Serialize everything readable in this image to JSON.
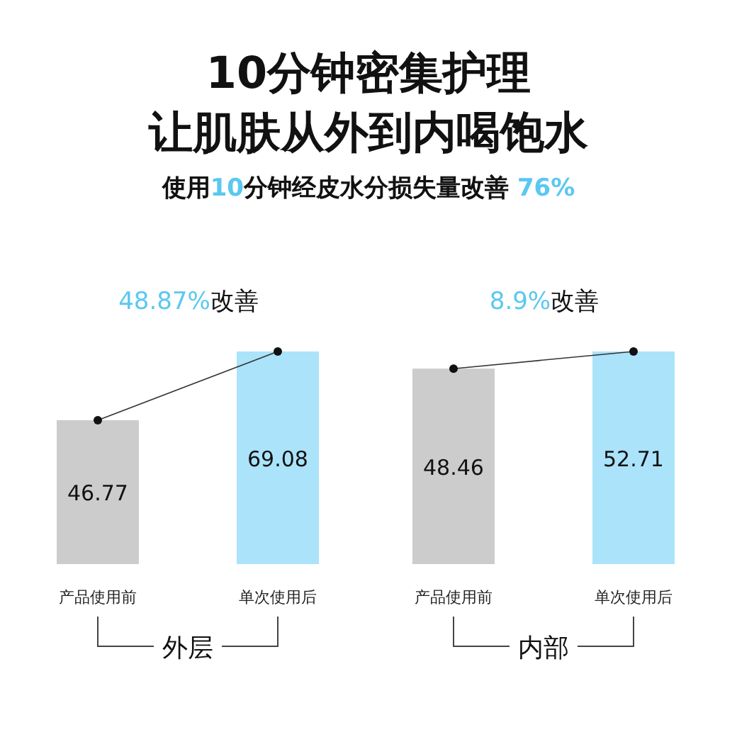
{
  "chart_data": [
    {
      "type": "other",
      "title": "10分钟密集护理让肌肤从外到内喝饱水",
      "subtitle": "使用10分钟经皮水分损失量改善 76%"
    },
    {
      "type": "bar",
      "categories": [
        "产品使用前",
        "单次使用后"
      ],
      "xlabel": "外层",
      "annotations": [
        "48.87%改善"
      ],
      "series": [
        {
          "type": "bar",
          "values": [
            46.77,
            69.08
          ],
          "value_labels": [
            "46.77",
            "69.08"
          ],
          "colors": [
            "#cccccc",
            "#aae3fa"
          ]
        },
        {
          "type": "line",
          "values": [
            46.77,
            69.08
          ],
          "color": "#333333",
          "marker": "circle"
        }
      ]
    },
    {
      "type": "bar",
      "categories": [
        "产品使用前",
        "单次使用后"
      ],
      "xlabel": "内部",
      "annotations": [
        "8.9%改善"
      ],
      "series": [
        {
          "type": "bar",
          "values": [
            48.46,
            52.71
          ],
          "value_labels": [
            "48.46",
            "52.71"
          ],
          "colors": [
            "#cccccc",
            "#aae3fa"
          ]
        },
        {
          "type": "line",
          "values": [
            48.46,
            52.71
          ],
          "color": "#333333",
          "marker": "circle"
        }
      ]
    }
  ]
}
